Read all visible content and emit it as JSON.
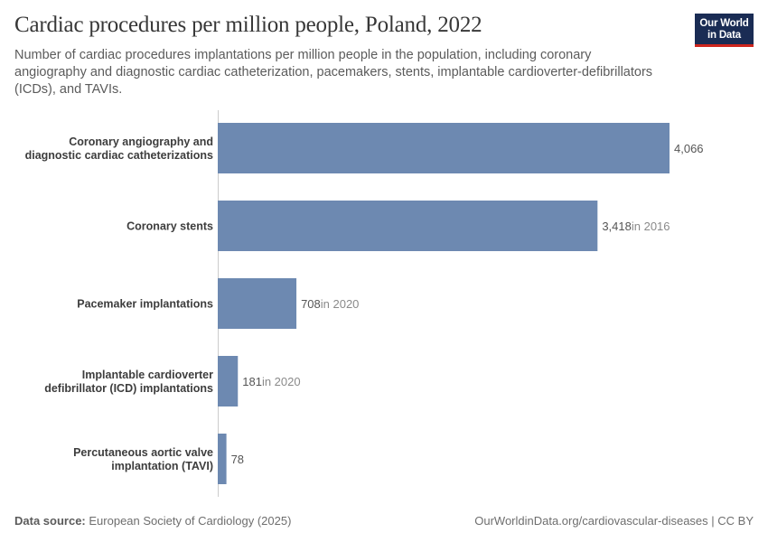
{
  "header": {
    "title": "Cardiac procedures per million people, Poland, 2022",
    "subtitle": "Number of cardiac procedures implantations per million people in the population, including coronary angiography and diagnostic cardiac catheterization, pacemakers, stents, implantable cardioverter-defibrillators (ICDs), and TAVIs.",
    "logo_line1": "Our World",
    "logo_line2": "in Data"
  },
  "colors": {
    "bar": "#6d89b1",
    "axis": "#cccccc",
    "category_label": "#3d3d3d",
    "value_label": "#555555",
    "year_note": "#8a8a8a",
    "logo_bg": "#1a2c54",
    "logo_accent": "#ce261e"
  },
  "chart_data": {
    "type": "bar",
    "orientation": "horizontal",
    "categories": [
      [
        "Coronary angiography and",
        "diagnostic cardiac catheterizations"
      ],
      [
        "Coronary stents"
      ],
      [
        "Pacemaker implantations"
      ],
      [
        "Implantable cardioverter",
        "defibrillator (ICD) implantations"
      ],
      [
        "Percutaneous aortic valve",
        "implantation (TAVI)"
      ]
    ],
    "values": [
      4066,
      3418,
      708,
      181,
      78
    ],
    "value_labels": [
      "4,066",
      "3,418",
      "708",
      "181",
      "78"
    ],
    "year_notes": [
      "",
      "in 2016",
      "in 2020",
      "in 2020",
      ""
    ],
    "xlim": [
      0,
      4066
    ],
    "grid": false,
    "legend": "none"
  },
  "footer": {
    "source_label": "Data source:",
    "source_text": "European Society of Cardiology (2025)",
    "right_text": "OurWorldinData.org/cardiovascular-diseases | CC BY"
  }
}
